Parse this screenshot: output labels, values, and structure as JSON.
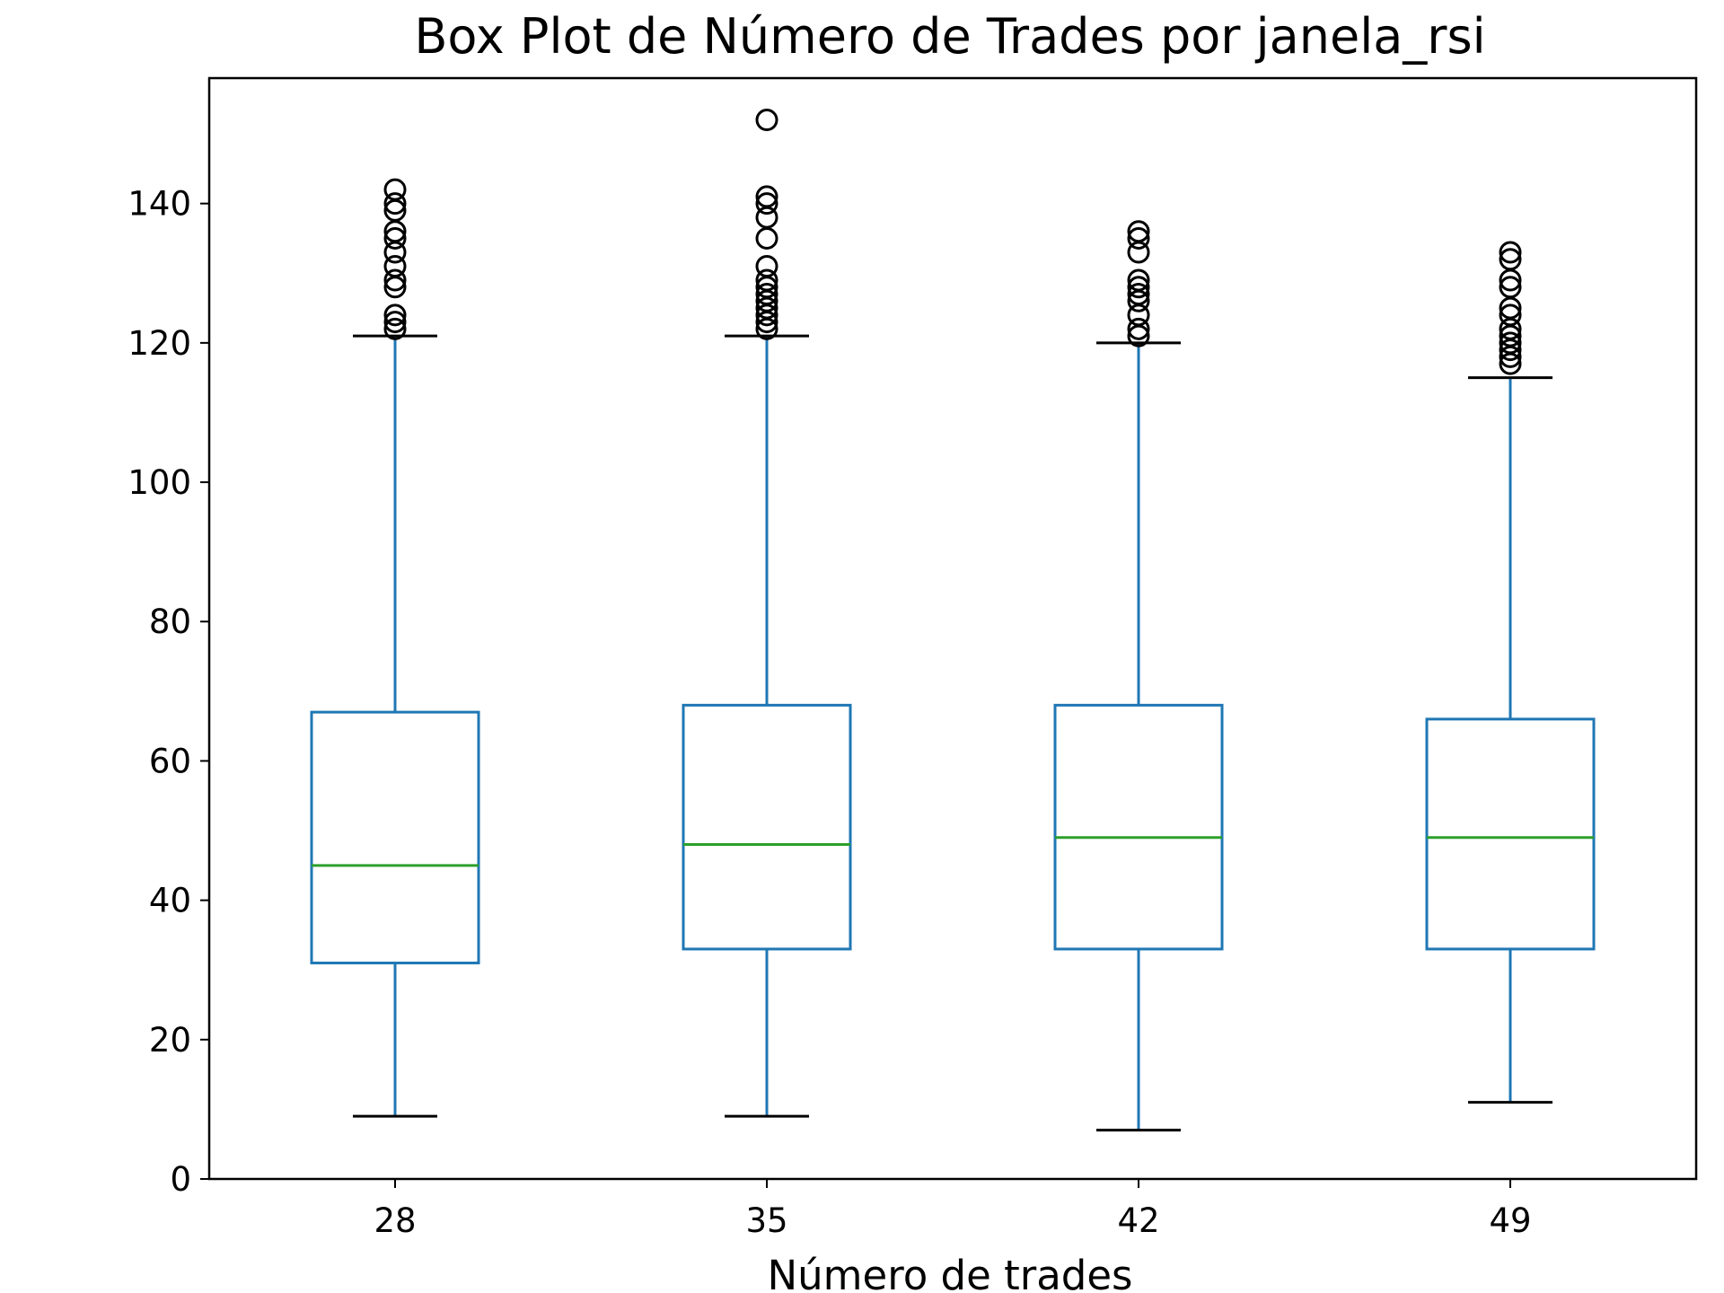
{
  "chart_data": {
    "type": "box",
    "title": "Box Plot de Número de Trades por janela_rsi",
    "xlabel": "Número de trades",
    "ylabel": "",
    "ylim": [
      0,
      158
    ],
    "yticks": [
      0,
      20,
      40,
      60,
      80,
      100,
      120,
      140
    ],
    "ytick_labels": [
      "0",
      "20",
      "40",
      "60",
      "80",
      "100",
      "120",
      "140"
    ],
    "grid": false,
    "categories": [
      "28",
      "35",
      "42",
      "49"
    ],
    "boxes": [
      {
        "category": "28",
        "whisker_low": 9,
        "q1": 31,
        "median": 45,
        "q3": 67,
        "whisker_high": 121,
        "outliers": [
          122,
          123,
          124,
          128,
          129,
          131,
          133,
          135,
          136,
          139,
          140,
          142
        ]
      },
      {
        "category": "35",
        "whisker_low": 9,
        "q1": 33,
        "median": 48,
        "q3": 68,
        "whisker_high": 121,
        "outliers": [
          122,
          123,
          124,
          125,
          126,
          127,
          128,
          129,
          131,
          135,
          138,
          140,
          141,
          152
        ]
      },
      {
        "category": "42",
        "whisker_low": 7,
        "q1": 33,
        "median": 49,
        "q3": 68,
        "whisker_high": 120,
        "outliers": [
          121,
          122,
          124,
          126,
          127,
          128,
          129,
          133,
          135,
          136
        ]
      },
      {
        "category": "49",
        "whisker_low": 11,
        "q1": 33,
        "median": 49,
        "q3": 66,
        "whisker_high": 115,
        "outliers": [
          117,
          118,
          119,
          120,
          121,
          122,
          124,
          125,
          128,
          129,
          132,
          133
        ]
      }
    ],
    "colors": {
      "box": "#1f77b4",
      "median": "#2ca02c",
      "caps": "#000000",
      "outliers": "#000000",
      "axes": "#000000"
    }
  }
}
